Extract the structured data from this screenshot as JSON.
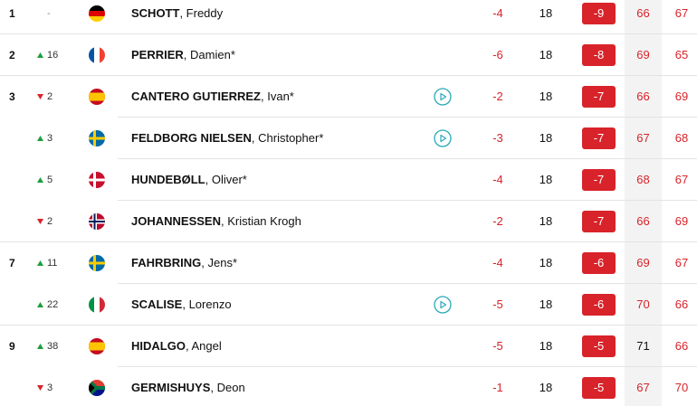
{
  "leaderboard": {
    "rows": [
      {
        "pos": "1",
        "move": "-",
        "move_dir": null,
        "flag": "de",
        "name": [
          "SCHOTT",
          ", Freddy"
        ],
        "video": false,
        "today": -4,
        "thru": 18,
        "total": -9,
        "rounds": [
          66,
          67
        ],
        "round_colors": [
          "#d8232a",
          "#d8232a"
        ]
      },
      {
        "pos": "2",
        "move": 16,
        "move_dir": "up",
        "flag": "fr",
        "name": [
          "PERRIER",
          ", Damien*"
        ],
        "video": false,
        "today": -6,
        "thru": 18,
        "total": -8,
        "rounds": [
          69,
          65
        ],
        "round_colors": [
          "#d8232a",
          "#d8232a"
        ]
      },
      {
        "pos": "3",
        "move": 2,
        "move_dir": "down",
        "flag": "es",
        "name": [
          "CANTERO GUTIERREZ",
          ", Ivan*"
        ],
        "video": true,
        "today": -2,
        "thru": 18,
        "total": -7,
        "rounds": [
          66,
          69
        ],
        "round_colors": [
          "#d8232a",
          "#d8232a"
        ]
      },
      {
        "pos": null,
        "move": 3,
        "move_dir": "up",
        "flag": "se",
        "name": [
          "FELDBORG NIELSEN",
          ", Christopher*"
        ],
        "video": true,
        "today": -3,
        "thru": 18,
        "total": -7,
        "rounds": [
          67,
          68
        ],
        "round_colors": [
          "#d8232a",
          "#d8232a"
        ]
      },
      {
        "pos": null,
        "move": 5,
        "move_dir": "up",
        "flag": "dk",
        "name": [
          "HUNDEBØLL",
          ", Oliver*"
        ],
        "video": false,
        "today": -4,
        "thru": 18,
        "total": -7,
        "rounds": [
          68,
          67
        ],
        "round_colors": [
          "#d8232a",
          "#d8232a"
        ]
      },
      {
        "pos": null,
        "move": 2,
        "move_dir": "down",
        "flag": "no",
        "name": [
          "JOHANNESSEN",
          ", Kristian Krogh"
        ],
        "video": false,
        "today": -2,
        "thru": 18,
        "total": -7,
        "rounds": [
          66,
          69
        ],
        "round_colors": [
          "#d8232a",
          "#d8232a"
        ]
      },
      {
        "pos": "7",
        "move": 11,
        "move_dir": "up",
        "flag": "se",
        "name": [
          "FAHRBRING",
          ", Jens*"
        ],
        "video": false,
        "today": -4,
        "thru": 18,
        "total": -6,
        "rounds": [
          69,
          67
        ],
        "round_colors": [
          "#d8232a",
          "#d8232a"
        ]
      },
      {
        "pos": null,
        "move": 22,
        "move_dir": "up",
        "flag": "it",
        "name": [
          "SCALISE",
          ", Lorenzo"
        ],
        "video": true,
        "today": -5,
        "thru": 18,
        "total": -6,
        "rounds": [
          70,
          66
        ],
        "round_colors": [
          "#d8232a",
          "#d8232a"
        ]
      },
      {
        "pos": "9",
        "move": 38,
        "move_dir": "up",
        "flag": "es",
        "name": [
          "HIDALGO",
          ", Angel"
        ],
        "video": false,
        "today": -5,
        "thru": 18,
        "total": -5,
        "rounds": [
          71,
          66
        ],
        "round_colors": [
          "#111111",
          "#d8232a"
        ]
      },
      {
        "pos": null,
        "move": 3,
        "move_dir": "down",
        "flag": "za",
        "name": [
          "GERMISHUYS",
          ", Deon"
        ],
        "video": false,
        "today": -1,
        "thru": 18,
        "total": -5,
        "rounds": [
          67,
          70
        ],
        "round_colors": [
          "#d8232a",
          "#d8232a"
        ]
      }
    ]
  }
}
